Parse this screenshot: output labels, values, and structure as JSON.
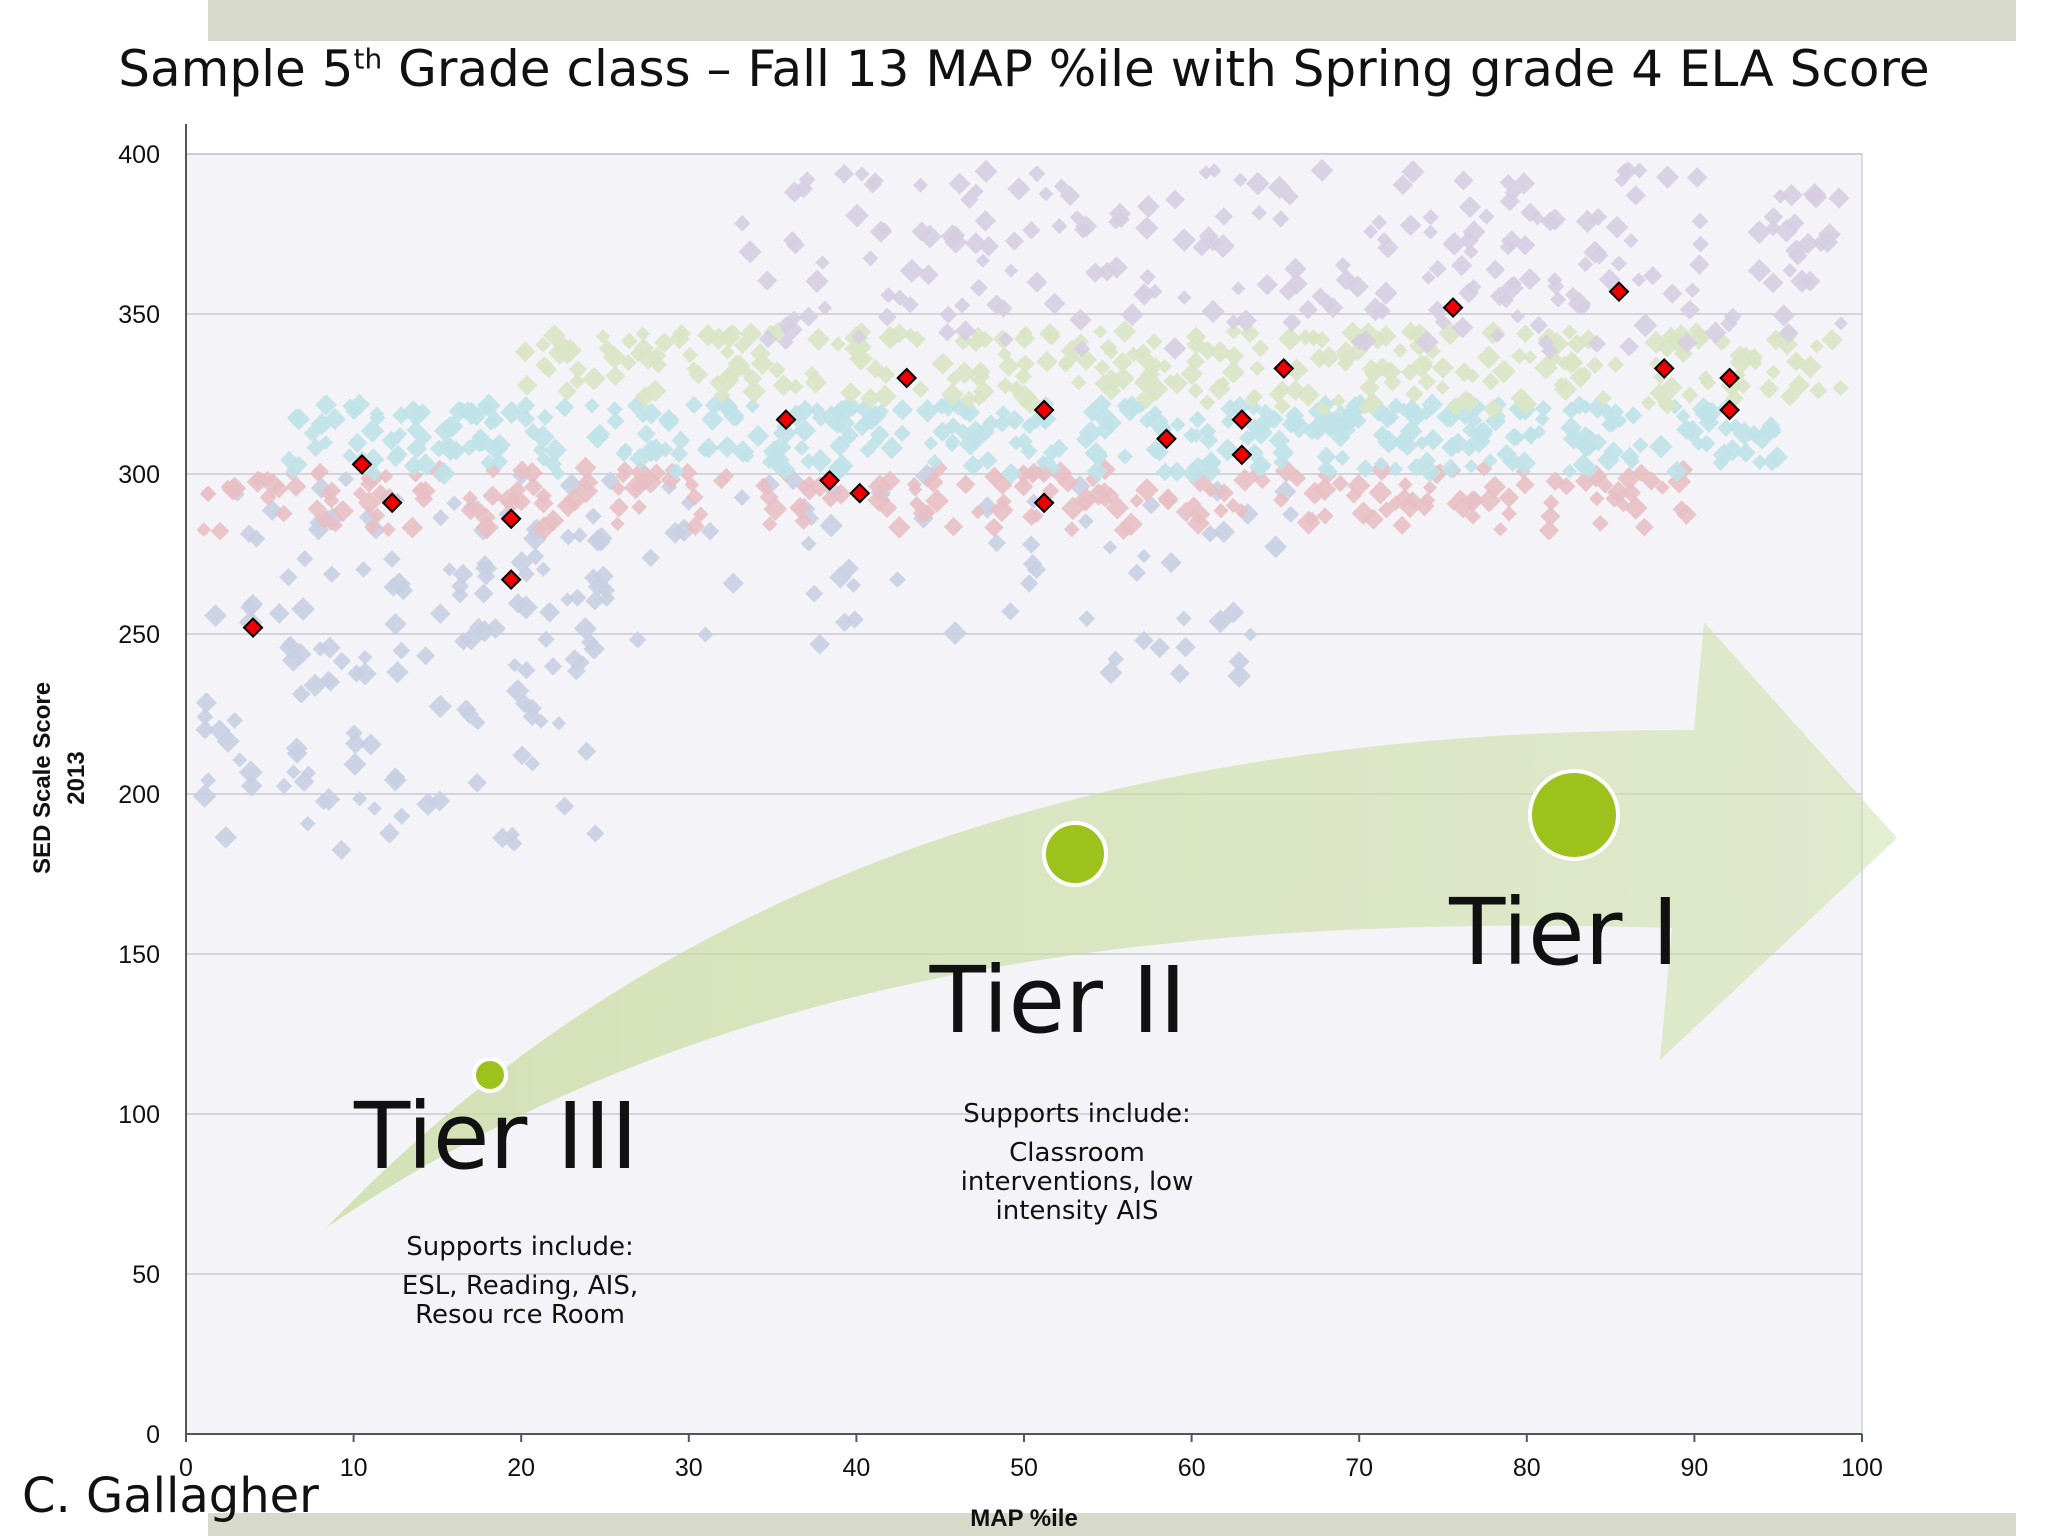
{
  "title": {
    "prefix": "Sample 5",
    "superscript": "th",
    "suffix": " Grade class – Fall 13 MAP %ile with Spring grade 4 ELA Score"
  },
  "author": "C. Gallagher",
  "colors": {
    "tier3_points": "#c7cfe2",
    "tier2_low_points": "#e8bfc3",
    "tier2_high_points": "#bfe2e8",
    "tier1_low_points": "#d9e4c4",
    "tier1_high_points": "#d6cde1",
    "highlight_points": "#ee0000",
    "arrow": "#dbe7bf",
    "tier_dot": "#9dc21c",
    "plot_bg": "#f4f4f8",
    "grid": "#c8c8d0"
  },
  "chart_data": {
    "type": "scatter",
    "xlabel": "MAP %ile",
    "ylabel": [
      "SED Scale Score",
      "2013"
    ],
    "xlim": [
      0,
      100
    ],
    "ylim": [
      0,
      400
    ],
    "x_ticks": [
      0,
      10,
      20,
      30,
      40,
      50,
      60,
      70,
      80,
      90,
      100
    ],
    "y_ticks": [
      0,
      50,
      100,
      150,
      200,
      250,
      300,
      350,
      400
    ],
    "grid": "horizontal",
    "series": [
      {
        "color_key": "highlight_points",
        "points": [
          [
            4,
            252
          ],
          [
            10.5,
            303
          ],
          [
            12.3,
            291
          ],
          [
            19.4,
            286
          ],
          [
            19.4,
            267
          ],
          [
            35.8,
            317
          ],
          [
            38.4,
            298
          ],
          [
            40.2,
            294
          ],
          [
            43,
            330
          ],
          [
            51.2,
            320
          ],
          [
            51.2,
            291
          ],
          [
            58.5,
            311
          ],
          [
            63,
            317
          ],
          [
            63,
            306
          ],
          [
            65.5,
            333
          ],
          [
            75.6,
            352
          ],
          [
            85.5,
            357
          ],
          [
            88.2,
            333
          ],
          [
            92.1,
            330
          ],
          [
            92.1,
            320
          ]
        ]
      }
    ],
    "background_clusters": [
      {
        "color_key": "tier3_points",
        "x": [
          1,
          25
        ],
        "y": [
          180,
          300
        ],
        "count": 150
      },
      {
        "color_key": "tier3_points",
        "x": [
          24,
          66
        ],
        "y": [
          235,
          300
        ],
        "count": 70
      },
      {
        "color_key": "tier2_low_points",
        "x": [
          1,
          92
        ],
        "y": [
          282,
          302
        ],
        "count": 230
      },
      {
        "color_key": "tier2_high_points",
        "x": [
          6,
          95
        ],
        "y": [
          300,
          322
        ],
        "count": 380
      },
      {
        "color_key": "tier1_low_points",
        "x": [
          20,
          99
        ],
        "y": [
          320,
          345
        ],
        "count": 280
      },
      {
        "color_key": "tier1_high_points",
        "x": [
          33,
          99
        ],
        "y": [
          338,
          395
        ],
        "count": 230
      }
    ],
    "annotations": {
      "tiers": [
        {
          "label": "Tier III",
          "dot": "small"
        },
        {
          "label": "Tier II",
          "dot": "medium"
        },
        {
          "label": "Tier I",
          "dot": "large"
        }
      ],
      "tier3_supports": {
        "heading": "Supports include:",
        "body": "ESL, Reading, AIS, Resou rce Room"
      },
      "tier2_supports": {
        "heading": "Supports include:",
        "body": "Classroom interventions, low intensity AIS"
      }
    }
  }
}
